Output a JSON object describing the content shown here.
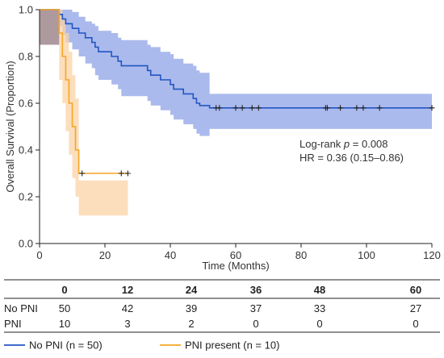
{
  "chart_data": {
    "type": "line",
    "subtype": "kaplan-meier",
    "title": "",
    "xlabel": "Time (Months)",
    "ylabel": "Overall Survival (Proportion)",
    "xlim": [
      0,
      120
    ],
    "ylim": [
      0,
      1.0
    ],
    "x_ticks": [
      0,
      20,
      40,
      60,
      80,
      100,
      120
    ],
    "x_tick_labels": [
      "0",
      "20",
      "40",
      "60",
      "80",
      "100",
      "120"
    ],
    "y_ticks": [
      0,
      0.2,
      0.4,
      0.6,
      0.8,
      1.0
    ],
    "y_tick_labels": [
      "0.0",
      "0.2",
      "0.4",
      "0.6",
      "0.8",
      "1.0"
    ],
    "grid": false,
    "legend_placement": "bottom",
    "annotations": {
      "logrank_prefix": "Log-rank ",
      "logrank_p_symbol": "p",
      "logrank_value": " = 0.008",
      "hr": "HR = 0.36 (0.15–0.86)"
    },
    "series": [
      {
        "name": "No PNI (n = 50)",
        "color": "#2255c4",
        "ci_color": "#8fa3e6",
        "steps": [
          [
            0,
            1.0
          ],
          [
            6,
            0.98
          ],
          [
            7,
            0.96
          ],
          [
            8,
            0.94
          ],
          [
            10,
            0.92
          ],
          [
            12,
            0.9
          ],
          [
            14,
            0.88
          ],
          [
            16,
            0.86
          ],
          [
            17,
            0.84
          ],
          [
            18,
            0.82
          ],
          [
            22,
            0.8
          ],
          [
            24,
            0.78
          ],
          [
            25,
            0.76
          ],
          [
            33,
            0.74
          ],
          [
            34,
            0.72
          ],
          [
            37,
            0.7
          ],
          [
            40,
            0.68
          ],
          [
            41,
            0.66
          ],
          [
            44,
            0.64
          ],
          [
            47,
            0.62
          ],
          [
            48,
            0.6
          ],
          [
            49,
            0.59
          ],
          [
            52,
            0.58
          ],
          [
            120,
            0.58
          ]
        ],
        "ci_lower": [
          [
            0,
            1.0
          ],
          [
            6,
            0.93
          ],
          [
            7,
            0.89
          ],
          [
            8,
            0.86
          ],
          [
            10,
            0.83
          ],
          [
            12,
            0.8
          ],
          [
            14,
            0.77
          ],
          [
            16,
            0.75
          ],
          [
            17,
            0.72
          ],
          [
            18,
            0.7
          ],
          [
            22,
            0.68
          ],
          [
            24,
            0.66
          ],
          [
            25,
            0.63
          ],
          [
            33,
            0.61
          ],
          [
            34,
            0.59
          ],
          [
            37,
            0.57
          ],
          [
            40,
            0.55
          ],
          [
            41,
            0.53
          ],
          [
            44,
            0.51
          ],
          [
            47,
            0.49
          ],
          [
            48,
            0.47
          ],
          [
            49,
            0.46
          ],
          [
            52,
            0.49
          ],
          [
            120,
            0.49
          ]
        ],
        "ci_upper": [
          [
            0,
            1.0
          ],
          [
            6,
            1.0
          ],
          [
            8,
            1.0
          ],
          [
            10,
            0.99
          ],
          [
            12,
            0.97
          ],
          [
            14,
            0.95
          ],
          [
            16,
            0.94
          ],
          [
            17,
            0.93
          ],
          [
            18,
            0.91
          ],
          [
            22,
            0.9
          ],
          [
            24,
            0.88
          ],
          [
            25,
            0.87
          ],
          [
            33,
            0.85
          ],
          [
            34,
            0.84
          ],
          [
            37,
            0.82
          ],
          [
            40,
            0.81
          ],
          [
            41,
            0.79
          ],
          [
            44,
            0.77
          ],
          [
            47,
            0.76
          ],
          [
            48,
            0.74
          ],
          [
            49,
            0.73
          ],
          [
            52,
            0.64
          ],
          [
            120,
            0.64
          ]
        ],
        "censored": [
          54,
          55,
          60,
          62,
          65,
          67,
          87.5,
          88,
          92,
          97,
          99,
          104,
          120
        ]
      },
      {
        "name": "PNI present (n = 10)",
        "color": "#f5a623",
        "ci_color": "#fbd3a6",
        "steps": [
          [
            0,
            1.0
          ],
          [
            6,
            0.9
          ],
          [
            7,
            0.8
          ],
          [
            8,
            0.7
          ],
          [
            9,
            0.6
          ],
          [
            10,
            0.5
          ],
          [
            11,
            0.4
          ],
          [
            12,
            0.3
          ],
          [
            27,
            0.3
          ]
        ],
        "ci_lower": [
          [
            0,
            0.85
          ],
          [
            6,
            0.7
          ],
          [
            7,
            0.6
          ],
          [
            8,
            0.48
          ],
          [
            9,
            0.38
          ],
          [
            10,
            0.28
          ],
          [
            11,
            0.2
          ],
          [
            12,
            0.12
          ],
          [
            27,
            0.12
          ]
        ],
        "ci_upper": [
          [
            0,
            1.0
          ],
          [
            6,
            1.0
          ],
          [
            7,
            0.96
          ],
          [
            8,
            0.9
          ],
          [
            9,
            0.82
          ],
          [
            10,
            0.72
          ],
          [
            11,
            0.62
          ],
          [
            12,
            0.27
          ],
          [
            27,
            0.27
          ]
        ],
        "censored": [
          13,
          25,
          27
        ]
      }
    ],
    "risk_table": {
      "times": [
        "0",
        "12",
        "24",
        "36",
        "48",
        "60"
      ],
      "rows": [
        {
          "label": "No PNI",
          "values": [
            "50",
            "42",
            "39",
            "37",
            "33",
            "27"
          ]
        },
        {
          "label": "PNI",
          "values": [
            "10",
            "3",
            "2",
            "0",
            "0",
            "0"
          ]
        }
      ]
    }
  }
}
